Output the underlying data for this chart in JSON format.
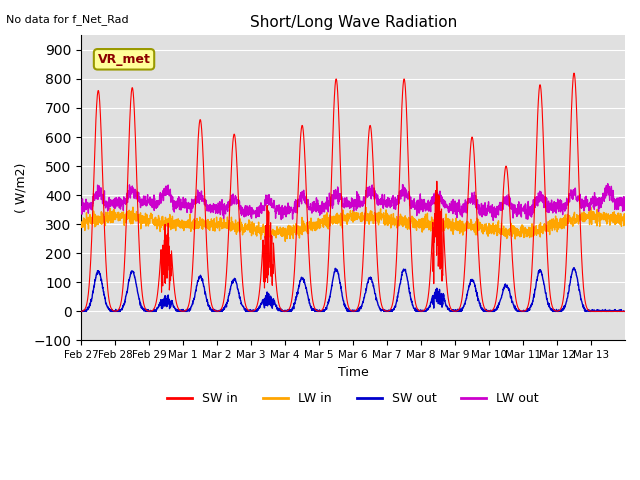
{
  "title": "Short/Long Wave Radiation",
  "xlabel": "Time",
  "ylabel": "( W/m2)",
  "ylim": [
    -100,
    950
  ],
  "yticks": [
    -100,
    0,
    100,
    200,
    300,
    400,
    500,
    600,
    700,
    800,
    900
  ],
  "x_tick_labels": [
    "Feb 27",
    "Feb 28",
    "Feb 29",
    "Mar 1",
    "Mar 2",
    "Mar 3",
    "Mar 4",
    "Mar 5",
    "Mar 6",
    "Mar 7",
    "Mar 8",
    "Mar 9",
    "Mar 10",
    "Mar 11",
    "Mar 12",
    "Mar 13"
  ],
  "annotation_text": "No data for f_Net_Rad",
  "box_label": "VR_met",
  "colors": {
    "SW_in": "#ff0000",
    "LW_in": "#ffa500",
    "SW_out": "#0000cc",
    "LW_out": "#cc00cc"
  },
  "background_color": "#e0e0e0",
  "legend_labels": [
    "SW in",
    "LW in",
    "SW out",
    "LW out"
  ],
  "num_days": 16,
  "points_per_day": 144
}
